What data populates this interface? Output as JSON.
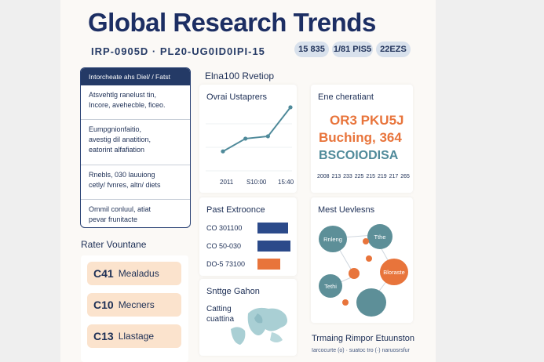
{
  "header": {
    "title": "Global Research Trends",
    "subtitle": "IRP-0905D · PL20-UG0ID0IPI-15",
    "pills": [
      "15 835",
      "1/81 PIS5",
      "22EZS"
    ]
  },
  "left_panel": {
    "header": "Intorcheate ahs Diel/ / Fatst",
    "items": [
      "Atsvehtlg ranelust tin,\nIncore, avehecble, ficeo.",
      "Eumpgnionfaitio,\navestig dil anatition,\neatorint alfafiation",
      "Rnebls, 030 lauuiong\ncetly/ fvnres, altn/ diets",
      "Ommil conluul, atiat\npevar frunitacte"
    ]
  },
  "research_volume": {
    "heading": "Rater Vountane",
    "items": [
      {
        "code": "C41",
        "label": "Mealadus"
      },
      {
        "code": "C10",
        "label": "Mecners"
      },
      {
        "code": "C13",
        "label": "Llastage"
      }
    ]
  },
  "middle_top": {
    "heading": "Elna100 Rvetiop",
    "card_title": "Ovrai Ustaprers",
    "x_ticks": [
      "2011",
      "S10:00",
      "15:40"
    ],
    "line_values": [
      1.0,
      2.1,
      2.3,
      4.8
    ]
  },
  "bar_card": {
    "title": "Past Extroonce",
    "bars": [
      {
        "label": "CO 301100",
        "value": 0.78,
        "color": "#2b4a8a"
      },
      {
        "label": "CO 50-030",
        "value": 0.84,
        "color": "#2b4a8a"
      },
      {
        "label": "DO-5 73100",
        "value": 0.58,
        "color": "#e8743b"
      }
    ]
  },
  "map_card": {
    "title": "Snttge Gahon",
    "caption": "Catting\ncuattina"
  },
  "emerging_card": {
    "title": "Ene cheratiant",
    "line1": "OR3 PKU5J",
    "line2": "Buching, 364",
    "line3": "BSCOIODISA",
    "ticks": [
      "2008",
      "213",
      "233",
      "225",
      "215",
      "219",
      "217",
      "265"
    ]
  },
  "network_card": {
    "title": "Mest Uevlesns",
    "nodes": [
      "Rnleng",
      "Tthe",
      "Bloraste",
      "Tethi",
      ""
    ]
  },
  "footer": {
    "title": "Trmaing Rimpor Etuunston",
    "note": "Iarcocurte (o) · suatoc tro (·) naruosrsfur"
  },
  "colors": {
    "navy": "#1c2e63",
    "orange": "#e8743b",
    "teal": "#4f8a9a",
    "bar_blue": "#2b4a8a"
  }
}
